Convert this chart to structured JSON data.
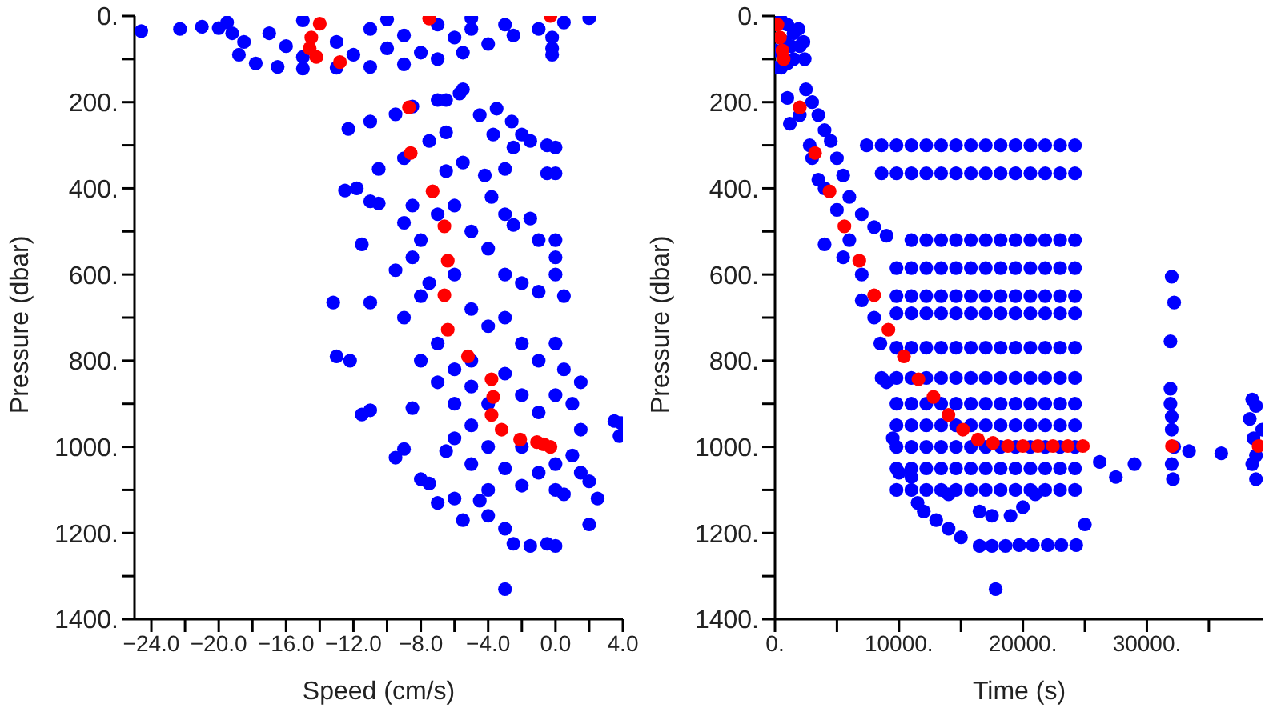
{
  "chart_data": [
    {
      "type": "scatter",
      "xlabel": "Speed (cm/s)",
      "ylabel": "Pressure (dbar)",
      "marker": "circle",
      "xlim": [
        -25,
        4
      ],
      "xticks": [
        {
          "value": -24,
          "label": "−24.0"
        },
        {
          "value": -22,
          "label": null
        },
        {
          "value": -20,
          "label": "−20.0"
        },
        {
          "value": -18,
          "label": null
        },
        {
          "value": -16,
          "label": "−16.0"
        },
        {
          "value": -14,
          "label": null
        },
        {
          "value": -12,
          "label": "−12.0"
        },
        {
          "value": -10,
          "label": null
        },
        {
          "value": -8,
          "label": "−8.0"
        },
        {
          "value": -6,
          "label": null
        },
        {
          "value": -4,
          "label": "−4.0"
        },
        {
          "value": -2,
          "label": null
        },
        {
          "value": 0,
          "label": "0.0"
        },
        {
          "value": 2,
          "label": null
        },
        {
          "value": 4,
          "label": "4.0"
        }
      ],
      "ylim": [
        1400,
        0
      ],
      "yticks": [
        {
          "value": 0,
          "label": "0."
        },
        {
          "value": 100,
          "label": null
        },
        {
          "value": 200,
          "label": "200."
        },
        {
          "value": 300,
          "label": null
        },
        {
          "value": 400,
          "label": "400."
        },
        {
          "value": 500,
          "label": null
        },
        {
          "value": 600,
          "label": "600."
        },
        {
          "value": 700,
          "label": null
        },
        {
          "value": 800,
          "label": "800."
        },
        {
          "value": 900,
          "label": null
        },
        {
          "value": 1000,
          "label": "1000."
        },
        {
          "value": 1100,
          "label": null
        },
        {
          "value": 1200,
          "label": "1200."
        },
        {
          "value": 1300,
          "label": null
        },
        {
          "value": 1400,
          "label": "1400."
        }
      ],
      "series": [
        {
          "color": "#0000ff",
          "x": [
            -24.6,
            -22.3,
            -21,
            -20,
            -19.2,
            -18.5,
            -18.8,
            -17.8,
            -16.5,
            -15,
            -13,
            -11,
            -9,
            -7,
            -5.5,
            -4,
            -2.5,
            -1,
            0.5,
            2,
            -17,
            -16,
            -15,
            -13,
            -12,
            -11,
            -10,
            -9,
            -8,
            -7,
            -6,
            -5,
            -3,
            -0.2,
            -0.2,
            -0.2,
            -19.5,
            -15,
            -10,
            -5,
            -12.3,
            -11,
            -9.5,
            -8.5,
            -7,
            -6.5,
            -5.5,
            -5.7,
            -4.5,
            -3.5,
            -3.7,
            -2.6,
            -2.5,
            -2,
            -1.5,
            -0.5,
            0,
            -0.5,
            0,
            -3,
            -10.5,
            -9,
            -7.5,
            -6.5,
            -12.5,
            -11.8,
            -11,
            -10.5,
            -8.5,
            -6.5,
            -5.5,
            -4.2,
            -3.8,
            -3,
            -2.5,
            -1.5,
            -1,
            0,
            0,
            -11.5,
            -11,
            -9,
            -8,
            -7,
            -6,
            -5,
            -4,
            -3,
            -2,
            -1,
            0,
            0.5,
            -9.5,
            -8.5,
            -7.5,
            -6,
            -5,
            -4,
            -3,
            -2,
            -1,
            0,
            0.5,
            -9,
            -8,
            -7,
            -6,
            -5,
            -4,
            -3,
            -2,
            -1,
            0,
            1,
            1.5,
            -8,
            -7,
            -6,
            -5,
            -4,
            -3,
            -2,
            -1,
            0,
            1,
            1.5,
            -6,
            -5,
            -4,
            -2,
            0,
            0.5,
            -13,
            -12.2,
            -11.5,
            -11,
            -9.5,
            -9,
            -8.5,
            -8,
            -7.5,
            -7,
            -6,
            -5.5,
            -4.5,
            -4,
            -3,
            -2.5,
            -1.5,
            -0.5,
            0,
            -3,
            2,
            2,
            2.5,
            3.5,
            3.8,
            3.9,
            1.5,
            -6.5,
            -5,
            -13.2
          ],
          "values": [
            35,
            30,
            25,
            28,
            40,
            60,
            90,
            110,
            118,
            122,
            120,
            118,
            112,
            100,
            85,
            65,
            45,
            30,
            15,
            5,
            40,
            70,
            95,
            60,
            90,
            30,
            75,
            45,
            85,
            20,
            50,
            30,
            20,
            50,
            75,
            90,
            15,
            10,
            8,
            5,
            262,
            245,
            228,
            210,
            195,
            195,
            170,
            180,
            230,
            215,
            275,
            245,
            305,
            275,
            290,
            300,
            305,
            365,
            365,
            355,
            355,
            330,
            290,
            270,
            405,
            400,
            430,
            435,
            440,
            360,
            340,
            370,
            420,
            460,
            485,
            470,
            520,
            520,
            560,
            530,
            665,
            480,
            520,
            460,
            440,
            500,
            540,
            600,
            620,
            640,
            600,
            650,
            590,
            560,
            620,
            600,
            680,
            720,
            700,
            760,
            800,
            760,
            820,
            700,
            650,
            760,
            820,
            860,
            900,
            830,
            880,
            920,
            880,
            900,
            960,
            800,
            850,
            900,
            950,
            1000,
            1050,
            1000,
            1060,
            1040,
            1020,
            1060,
            980,
            1040,
            1100,
            1090,
            1100,
            1110,
            790,
            800,
            925,
            915,
            1025,
            1005,
            910,
            1075,
            1085,
            1130,
            1120,
            1170,
            1125,
            1160,
            1190,
            1225,
            1230,
            1225,
            1230,
            1330,
            1180,
            1080,
            1120,
            940,
            975,
            945,
            850,
            1010,
            800,
            665
          ]
        },
        {
          "color": "#ff0000",
          "x": [
            -14,
            -14.5,
            -14.6,
            -14.2,
            -12.8,
            -7.5,
            -0.3,
            -8.7,
            -8.6,
            -7.3,
            -6.6,
            -6.4,
            -6.6,
            -6.4,
            -5.2,
            -3.8,
            -3.7,
            -3.8,
            -3.2,
            -2.1,
            -1.1,
            -0.7,
            -0.3
          ],
          "values": [
            18,
            50,
            75,
            95,
            107,
            6,
            0,
            212,
            318,
            407,
            488,
            568,
            648,
            728,
            790,
            843,
            884,
            926,
            960,
            983,
            989,
            994,
            1000
          ]
        }
      ]
    },
    {
      "type": "scatter",
      "xlabel": "Time (s)",
      "ylabel": "Pressure (dbar)",
      "marker": "circle",
      "xlim": [
        0,
        39400
      ],
      "xticks": [
        {
          "value": 0,
          "label": "0."
        },
        {
          "value": 5000,
          "label": null
        },
        {
          "value": 10000,
          "label": "10000."
        },
        {
          "value": 15000,
          "label": null
        },
        {
          "value": 20000,
          "label": "20000."
        },
        {
          "value": 25000,
          "label": null
        },
        {
          "value": 30000,
          "label": "30000."
        },
        {
          "value": 35000,
          "label": null
        }
      ],
      "ylim": [
        1400,
        0
      ],
      "yticks": [
        {
          "value": 0,
          "label": "0."
        },
        {
          "value": 100,
          "label": null
        },
        {
          "value": 200,
          "label": "200."
        },
        {
          "value": 300,
          "label": null
        },
        {
          "value": 400,
          "label": "400."
        },
        {
          "value": 500,
          "label": null
        },
        {
          "value": 600,
          "label": "600."
        },
        {
          "value": 700,
          "label": null
        },
        {
          "value": 800,
          "label": "800."
        },
        {
          "value": 900,
          "label": null
        },
        {
          "value": 1000,
          "label": "1000."
        },
        {
          "value": 1100,
          "label": null
        },
        {
          "value": 1200,
          "label": "1200."
        },
        {
          "value": 1300,
          "label": null
        },
        {
          "value": 1400,
          "label": "1400."
        }
      ],
      "series": [
        {
          "color": "#0000ff",
          "x": [
            1900,
            2300,
            0,
            0,
            500,
            500,
            1000,
            1000,
            1500,
            1500,
            2000,
            2400,
            800,
            1300,
            1000,
            1200,
            2000,
            2800,
            3000,
            3500,
            4000,
            4000,
            5000,
            5500,
            6000,
            7000,
            7000,
            8000,
            8500,
            9000,
            9500,
            10000,
            11000,
            11500,
            12000,
            13000,
            14000,
            15000,
            16500,
            17500,
            18600,
            19700,
            20800,
            22000,
            23100,
            24300,
            25000,
            17800,
            14000,
            16500,
            17500,
            19000,
            20000,
            21000,
            2500,
            3000,
            3500,
            4000,
            4500,
            5000,
            5500,
            6000,
            7000,
            8000,
            9000,
            7400,
            8600,
            9800,
            11000,
            12200,
            13400,
            14600,
            15800,
            17000,
            18200,
            19400,
            20600,
            21800,
            23000,
            24200,
            8600,
            9800,
            11000,
            12200,
            13400,
            14600,
            15800,
            17000,
            18200,
            19400,
            20600,
            21800,
            23000,
            24200,
            11000,
            12200,
            13400,
            14600,
            15800,
            17000,
            18200,
            19400,
            20600,
            21800,
            23000,
            24200,
            9800,
            11000,
            12200,
            13400,
            14600,
            15800,
            17000,
            18200,
            19400,
            20600,
            21800,
            23000,
            24200,
            9800,
            11000,
            12200,
            13400,
            14600,
            15800,
            17000,
            18200,
            19400,
            20600,
            21800,
            23000,
            24200,
            9800,
            11000,
            12200,
            13400,
            14600,
            15800,
            17000,
            18200,
            19400,
            20600,
            21800,
            23000,
            24200,
            9800,
            11000,
            12200,
            13400,
            14600,
            15800,
            17000,
            18200,
            19400,
            20600,
            21800,
            23000,
            24200,
            8600,
            9800,
            11000,
            12200,
            13400,
            14600,
            15800,
            17000,
            18200,
            19400,
            20600,
            21800,
            23000,
            24200,
            9800,
            11000,
            12200,
            13400,
            14600,
            15800,
            17000,
            18200,
            19400,
            20600,
            21800,
            23000,
            24200,
            9800,
            11000,
            12200,
            13400,
            14600,
            15800,
            17000,
            18200,
            19400,
            20600,
            21800,
            23000,
            24200,
            9800,
            11000,
            12200,
            13400,
            14600,
            15800,
            17000,
            18200,
            19400,
            20600,
            21800,
            23000,
            24200,
            9800,
            11000,
            12200,
            13400,
            14600,
            15800,
            17000,
            18200,
            19400,
            20600,
            21800,
            23000,
            24200,
            9800,
            11000,
            12200,
            13400,
            14600,
            15800,
            17000,
            18200,
            19400,
            20600,
            21800,
            23000,
            24200,
            32000,
            32200,
            31900,
            31900,
            31900,
            32000,
            32000,
            32200,
            32000,
            32100,
            26200,
            27500,
            29000,
            33400,
            36000,
            38500,
            38800,
            38300,
            38600,
            38800,
            38500,
            38800,
            39300
          ],
          "values": [
            30,
            60,
            80,
            120,
            10,
            120,
            20,
            110,
            40,
            100,
            70,
            100,
            60,
            70,
            190,
            250,
            230,
            300,
            330,
            380,
            400,
            530,
            450,
            560,
            520,
            600,
            660,
            700,
            760,
            850,
            980,
            1060,
            1070,
            1130,
            1150,
            1170,
            1190,
            1210,
            1230,
            1230,
            1230,
            1228,
            1228,
            1228,
            1228,
            1228,
            1180,
            1330,
            1110,
            1150,
            1160,
            1160,
            1140,
            1110,
            170,
            200,
            230,
            265,
            290,
            330,
            370,
            420,
            460,
            490,
            510,
            300,
            300,
            300,
            300,
            300,
            300,
            300,
            300,
            300,
            300,
            300,
            300,
            300,
            300,
            300,
            365,
            365,
            365,
            365,
            365,
            365,
            365,
            365,
            365,
            365,
            365,
            365,
            365,
            365,
            520,
            520,
            520,
            520,
            520,
            520,
            520,
            520,
            520,
            520,
            520,
            520,
            585,
            585,
            585,
            585,
            585,
            585,
            585,
            585,
            585,
            585,
            585,
            585,
            585,
            650,
            650,
            650,
            650,
            650,
            650,
            650,
            650,
            650,
            650,
            650,
            650,
            650,
            690,
            690,
            690,
            690,
            690,
            690,
            690,
            690,
            690,
            690,
            690,
            690,
            690,
            770,
            770,
            770,
            770,
            770,
            770,
            770,
            770,
            770,
            770,
            770,
            770,
            770,
            840,
            840,
            840,
            840,
            840,
            840,
            840,
            840,
            840,
            840,
            840,
            840,
            840,
            840,
            900,
            900,
            900,
            900,
            900,
            900,
            900,
            900,
            900,
            900,
            900,
            900,
            900,
            950,
            950,
            950,
            950,
            950,
            950,
            950,
            950,
            950,
            950,
            950,
            950,
            950,
            1000,
            1000,
            1000,
            1000,
            1000,
            1000,
            1000,
            1000,
            1000,
            1000,
            1000,
            1000,
            1000,
            1050,
            1050,
            1050,
            1050,
            1050,
            1050,
            1050,
            1050,
            1050,
            1050,
            1050,
            1050,
            1050,
            1100,
            1100,
            1100,
            1100,
            1100,
            1100,
            1100,
            1100,
            1100,
            1100,
            1100,
            1100,
            1100,
            605,
            665,
            755,
            865,
            900,
            930,
            960,
            1000,
            1040,
            1075,
            1035,
            1070,
            1040,
            1010,
            1015,
            890,
            905,
            935,
            980,
            1020,
            1040,
            1075,
            960
          ]
        },
        {
          "color": "#ff0000",
          "x": [
            200,
            400,
            600,
            700,
            2000,
            3230,
            4400,
            5600,
            6800,
            8000,
            9150,
            10400,
            11570,
            12780,
            13990,
            15160,
            16370,
            17580,
            18790,
            20000,
            21210,
            22420,
            23630,
            24840,
            32020,
            39010
          ],
          "values": [
            20,
            50,
            80,
            100,
            212,
            318,
            407,
            488,
            568,
            648,
            728,
            790,
            843,
            884,
            926,
            960,
            983,
            991,
            998,
            998,
            998,
            998,
            998,
            998,
            998,
            998
          ]
        }
      ]
    }
  ]
}
